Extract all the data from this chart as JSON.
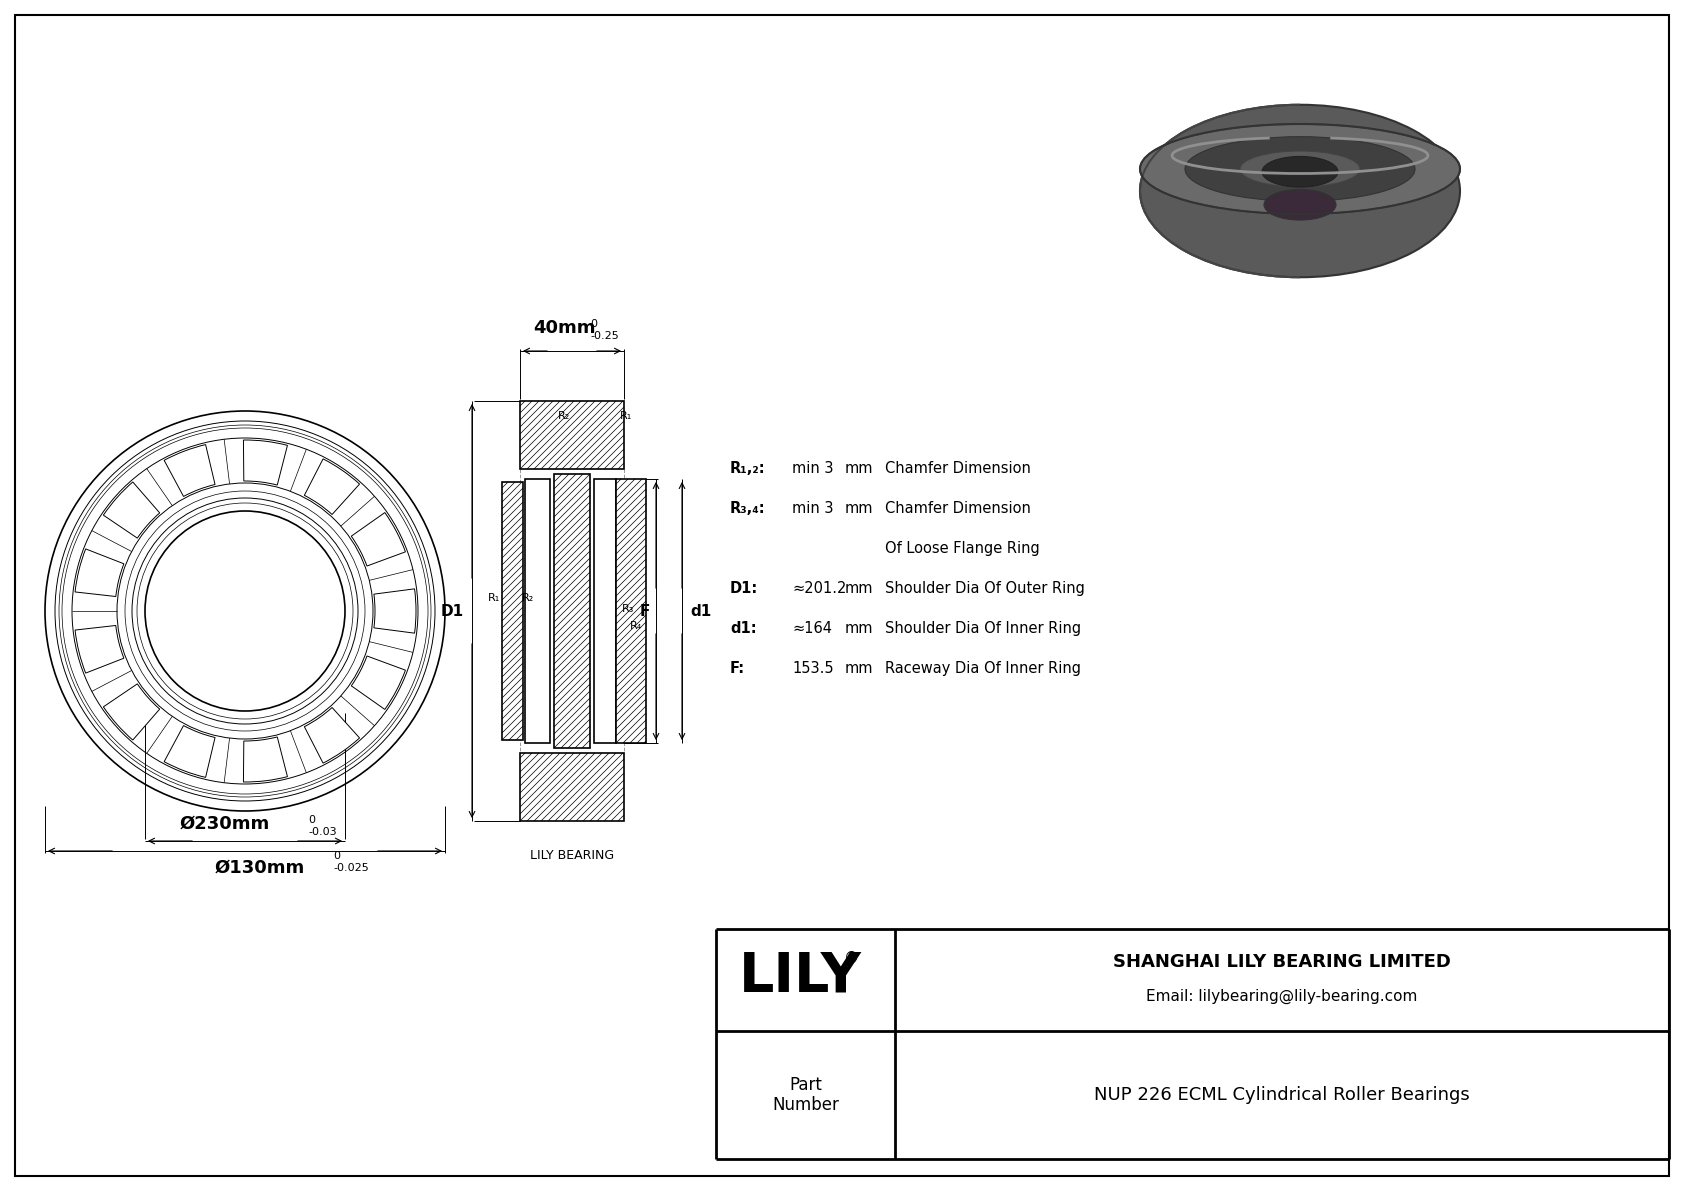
{
  "bg_color": "#ffffff",
  "col": "#000000",
  "company_name": "SHANGHAI LILY BEARING LIMITED",
  "email": "Email: lilybearing@lily-bearing.com",
  "part_label": "Part\nNumber",
  "part_number": "NUP 226 ECML Cylindrical Roller Bearings",
  "outer_dia_label": "Ø230mm",
  "outer_dia_tol": "-0.03",
  "outer_dia_tol_upper": "0",
  "inner_dia_label": "Ø130mm",
  "inner_dia_tol": "-0.025",
  "inner_dia_tol_upper": "0",
  "width_label": "40mm",
  "width_tol": "-0.25",
  "width_tol_upper": "0",
  "spec_table": [
    [
      "R₁,₂:",
      "min 3",
      "mm",
      "Chamfer Dimension"
    ],
    [
      "R₃,₄:",
      "min 3",
      "mm",
      "Chamfer Dimension"
    ],
    [
      "",
      "",
      "",
      "Of Loose Flange Ring"
    ],
    [
      "D1:",
      "≈201.2",
      "mm",
      "Shoulder Dia Of Outer Ring"
    ],
    [
      "d1:",
      "≈164",
      "mm",
      "Shoulder Dia Of Inner Ring"
    ],
    [
      "F:",
      "153.5",
      "mm",
      "Raceway Dia Of Inner Ring"
    ]
  ],
  "lily_bearing_label": "LILY BEARING"
}
